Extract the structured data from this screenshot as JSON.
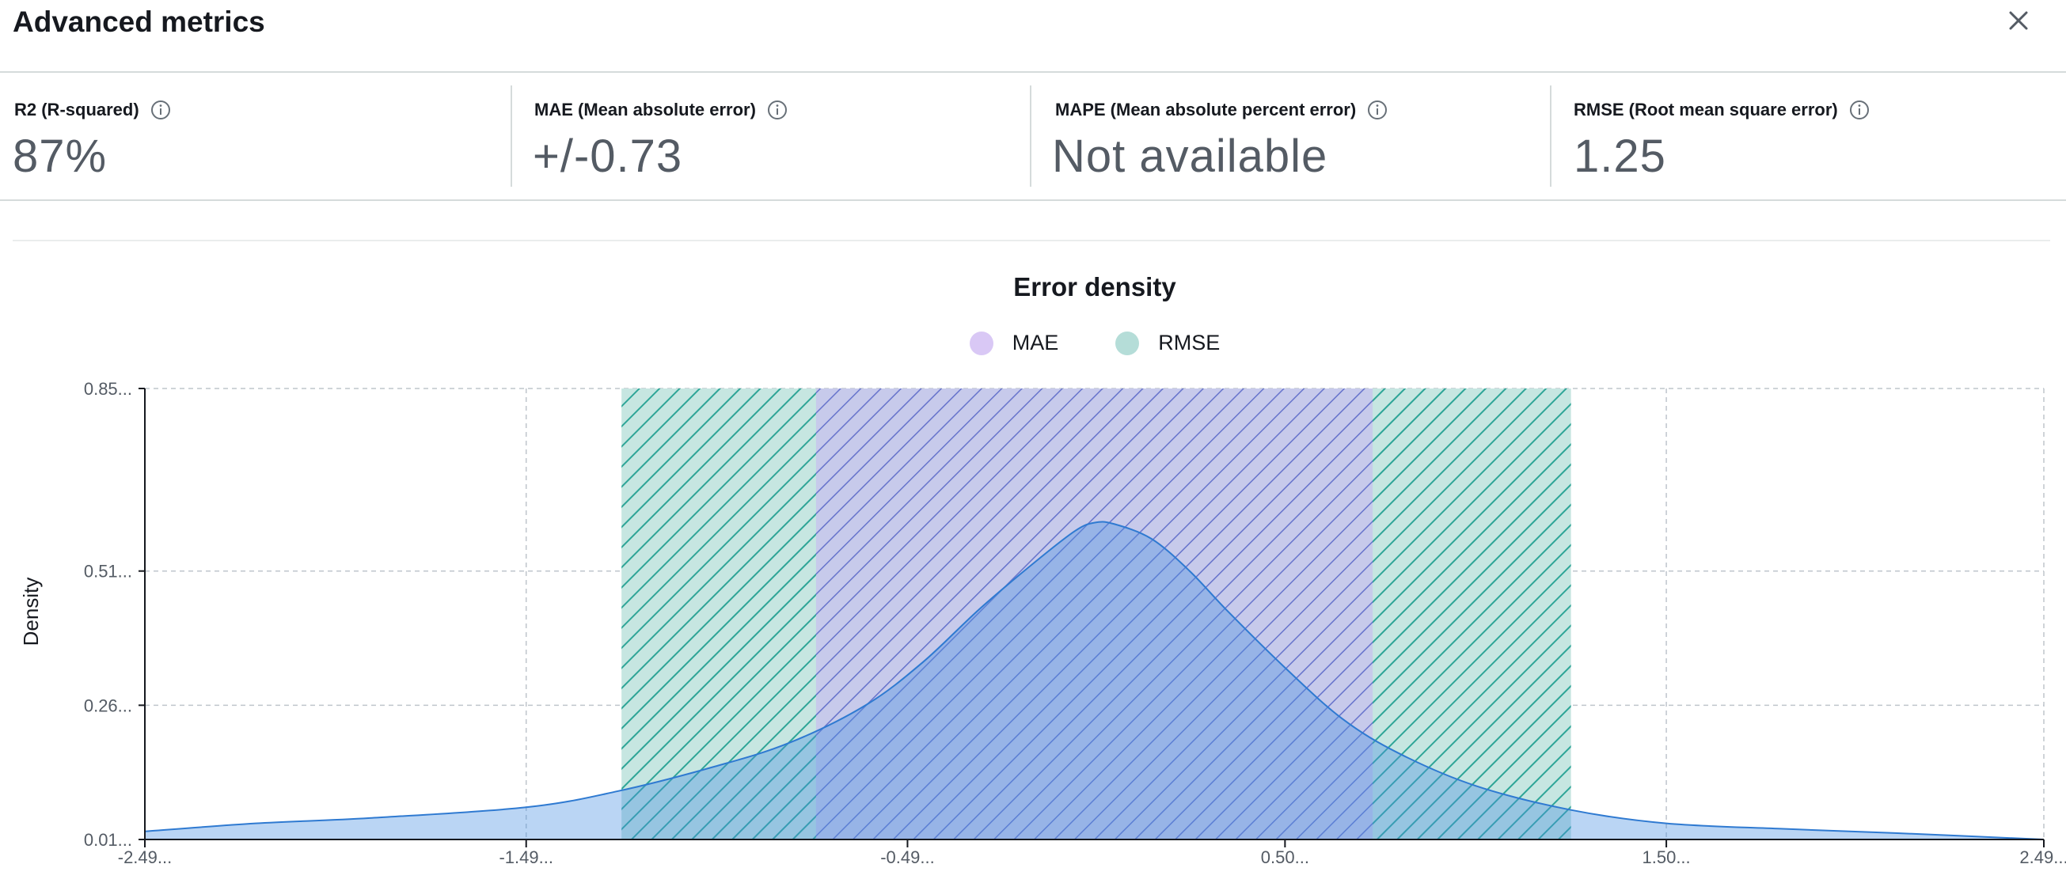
{
  "header": {
    "title": "Advanced metrics",
    "close_icon": "close-icon"
  },
  "metrics": [
    {
      "label": "R2 (R-squared)",
      "value": "87%",
      "icon": "info-icon"
    },
    {
      "label": "MAE (Mean absolute error)",
      "value": "+/-0.73",
      "icon": "info-icon"
    },
    {
      "label": "MAPE (Mean absolute percent error)",
      "value": "Not available",
      "icon": "info-icon"
    },
    {
      "label": "RMSE (Root mean square error)",
      "value": "1.25",
      "icon": "info-icon"
    }
  ],
  "colors": {
    "mae": "#7d83e6",
    "rmse": "#2ea597",
    "density": "#4a90e2",
    "grid": "#bfc5cc"
  },
  "chart_data": {
    "type": "area",
    "title": "Error density",
    "ylabel": "Density",
    "xlabel": "",
    "legend": [
      {
        "name": "MAE",
        "color": "#d9c8f5"
      },
      {
        "name": "RMSE",
        "color": "#b5ddd8"
      }
    ],
    "legend_position": "top-center",
    "grid": true,
    "x_ticks": [
      "-2.49...",
      "-1.49...",
      "-0.49...",
      "0.50...",
      "1.50...",
      "2.49..."
    ],
    "x_tick_values": [
      -2.49,
      -1.49,
      -0.49,
      0.5,
      1.5,
      2.49
    ],
    "y_ticks": [
      "0.01...",
      "0.26...",
      "0.51...",
      "0.85..."
    ],
    "y_tick_values": [
      0.01,
      0.26,
      0.51,
      0.85
    ],
    "xlim": [
      -2.49,
      2.49
    ],
    "ylim": [
      0.01,
      0.85
    ],
    "bands": [
      {
        "name": "RMSE",
        "x0": -1.24,
        "x1": 1.25
      },
      {
        "name": "MAE",
        "x0": -0.73,
        "x1": 0.73
      }
    ],
    "series": [
      {
        "name": "Error density",
        "x": [
          -2.49,
          -2.2,
          -1.9,
          -1.49,
          -1.25,
          -1.0,
          -0.8,
          -0.6,
          -0.45,
          -0.3,
          -0.15,
          -0.05,
          0.0,
          0.05,
          0.15,
          0.25,
          0.35,
          0.5,
          0.65,
          0.8,
          1.0,
          1.25,
          1.5,
          1.8,
          2.1,
          2.49
        ],
        "y": [
          0.025,
          0.04,
          0.05,
          0.07,
          0.1,
          0.145,
          0.19,
          0.26,
          0.34,
          0.44,
          0.53,
          0.585,
          0.6,
          0.598,
          0.57,
          0.51,
          0.435,
          0.33,
          0.235,
          0.17,
          0.11,
          0.065,
          0.04,
          0.03,
          0.022,
          0.01
        ]
      }
    ]
  }
}
